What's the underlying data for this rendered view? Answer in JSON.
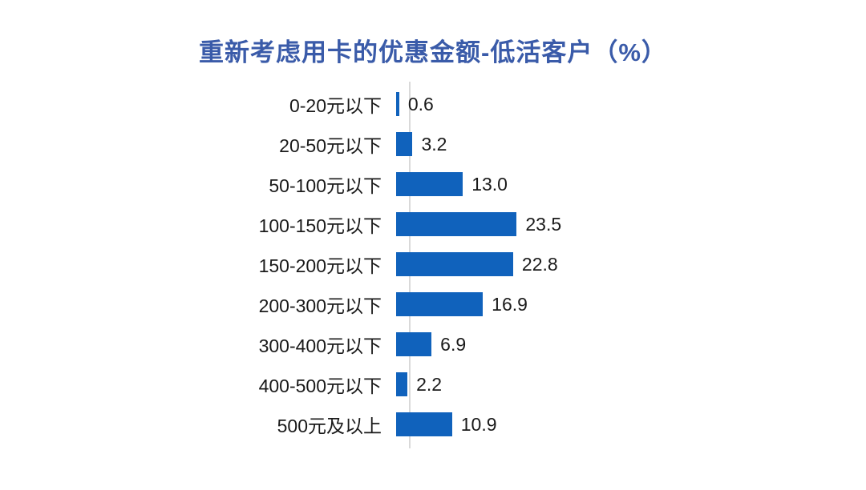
{
  "title": "重新考虑用卡的优惠金额-低活客户（%）",
  "chart_data": {
    "type": "bar",
    "orientation": "horizontal",
    "title": "重新考虑用卡的优惠金额-低活客户（%）",
    "categories": [
      "0-20元以下",
      "20-50元以下",
      "50-100元以下",
      "100-150元以下",
      "150-200元以下",
      "200-300元以下",
      "300-400元以下",
      "400-500元以下",
      "500元及以上"
    ],
    "values": [
      0.6,
      3.2,
      13.0,
      23.5,
      22.8,
      16.9,
      6.9,
      2.2,
      10.9
    ],
    "value_labels": [
      "0.6",
      "3.2",
      "13.0",
      "23.5",
      "22.8",
      "16.9",
      "6.9",
      "2.2",
      "10.9"
    ],
    "xlabel": "",
    "ylabel": "",
    "xlim": [
      0,
      25
    ],
    "grid": false,
    "legend": false,
    "colors": {
      "bar": "#1062BC",
      "title": "#3A5BA9",
      "label": "#1a1a1a",
      "axis_line": "#D9D9D9",
      "background": "#ffffff"
    }
  }
}
